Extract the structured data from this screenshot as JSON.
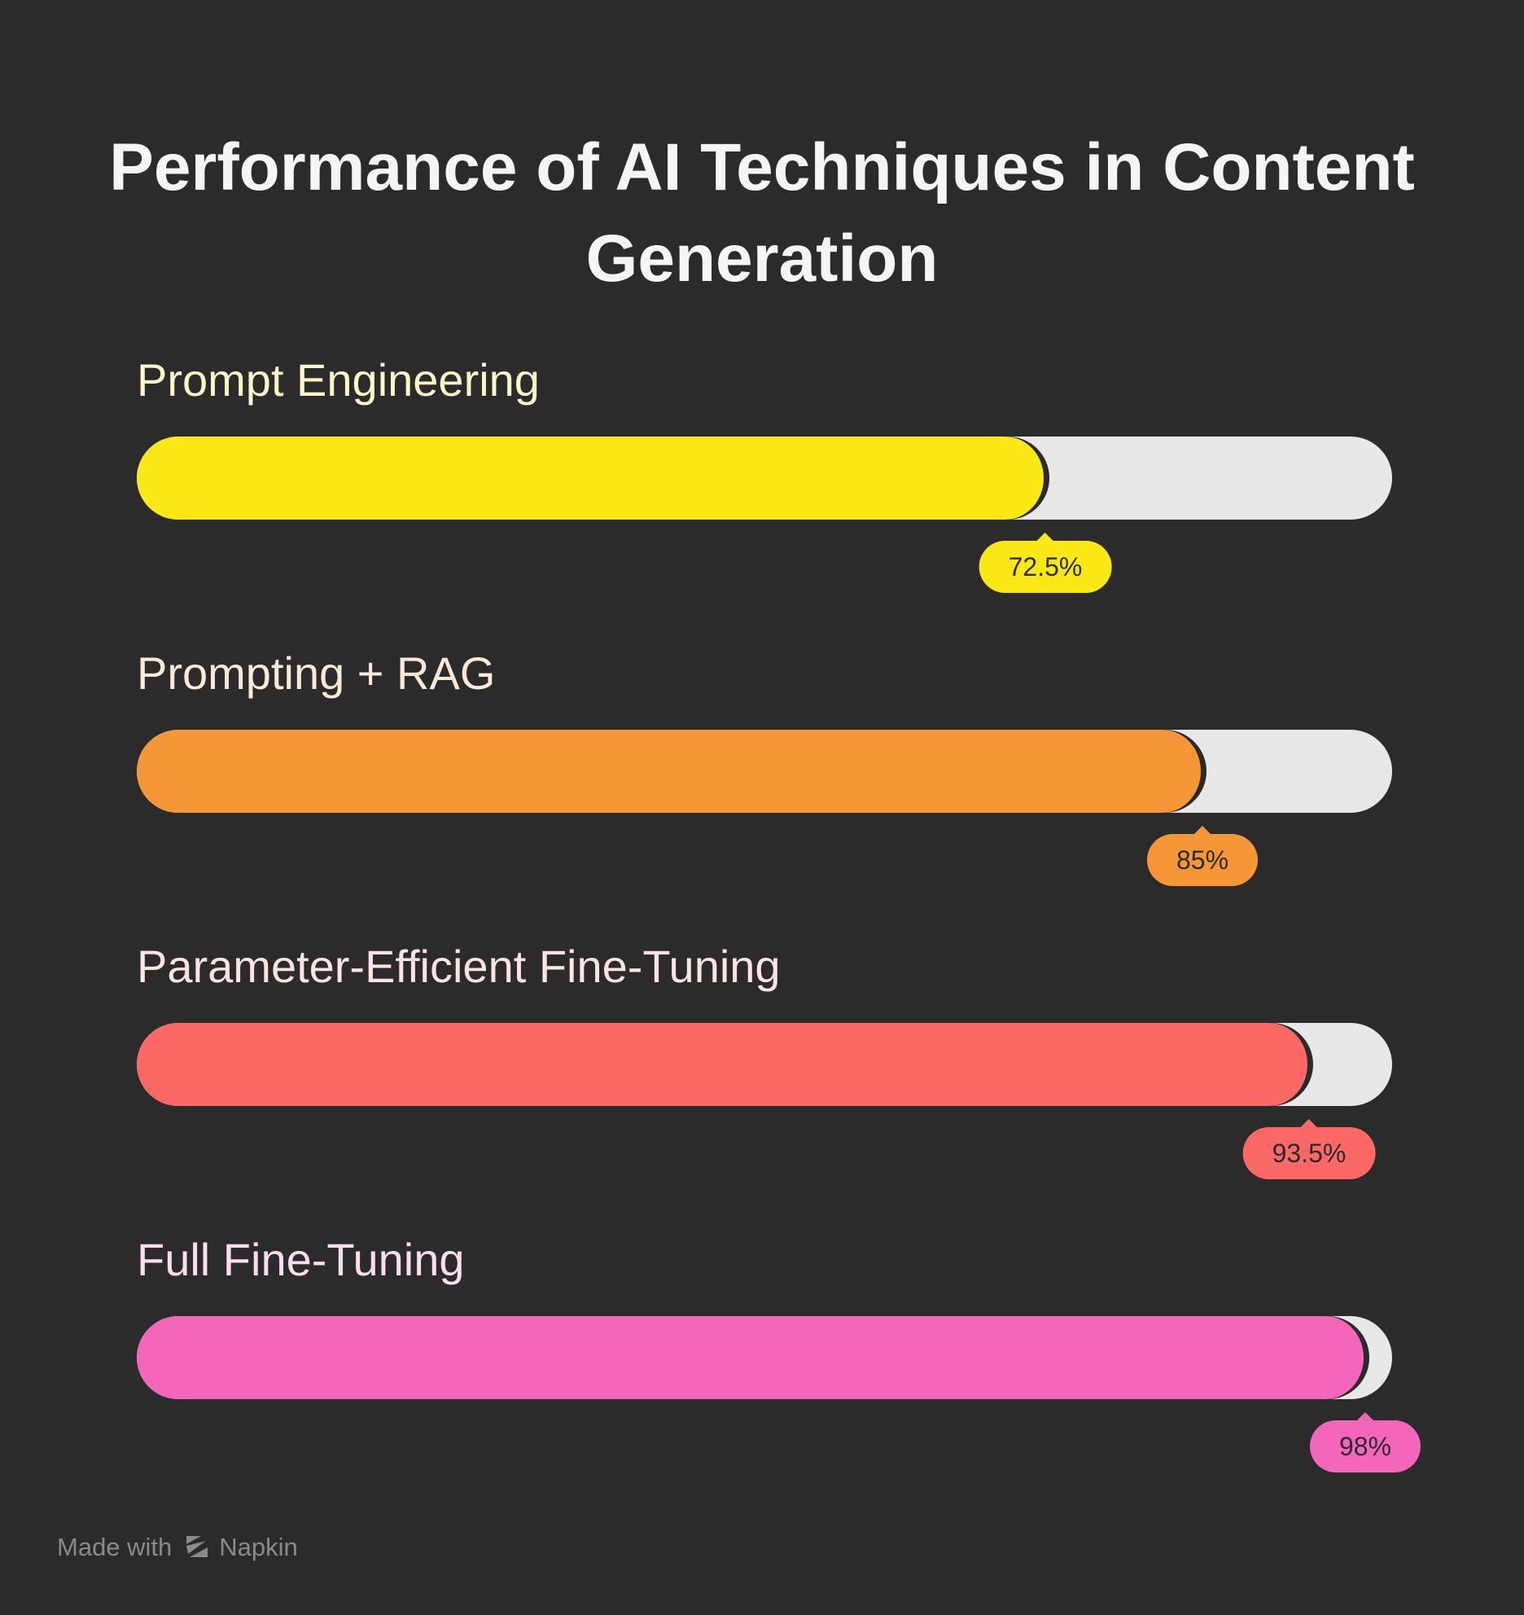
{
  "chart_data": {
    "type": "bar",
    "orientation": "horizontal",
    "title": "Performance of AI Techniques in Content Generation",
    "title_lines": [
      "Performance of AI Techniques in Content",
      "Generation"
    ],
    "xlim": [
      0,
      100
    ],
    "unit": "%",
    "categories": [
      "Prompt Engineering",
      "Prompting + RAG",
      "Parameter-Efficient Fine-Tuning",
      "Full Fine-Tuning"
    ],
    "values": [
      72.5,
      85,
      93.5,
      98
    ],
    "value_labels": [
      "72.5%",
      "85%",
      "93.5%",
      "98%"
    ],
    "colors": [
      "#fce815",
      "#f69737",
      "#fb6865",
      "#f466bc"
    ],
    "label_colors": [
      "#fdf6c8",
      "#fde9d6",
      "#fde3e2",
      "#fcdcef"
    ]
  },
  "footer": {
    "made_with": "Made with",
    "brand": "Napkin"
  },
  "colors": {
    "background": "#2b2b2b",
    "track": "#e8e8e8",
    "title": "#f5f5f5",
    "footer": "#8a8a8a"
  }
}
